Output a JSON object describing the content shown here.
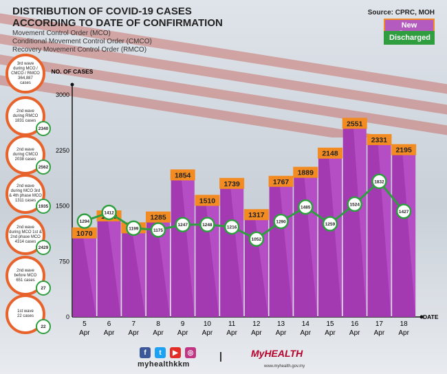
{
  "header": {
    "title_line1": "DISTRIBUTION OF COVID-19 CASES",
    "title_line2": "ACCORDING TO DATE OF CONFIRMATION",
    "sub1": "Movement Control Order (MCO)",
    "sub2": "Conditional Movement Control Order (CMCO)",
    "sub3": "Recovery Movement Control Order (RMCO)",
    "source": "Source: CPRC, MOH"
  },
  "legend": {
    "new_cases": "New Cases",
    "discharged": "Discharged"
  },
  "colors": {
    "bar": "#a43ab2",
    "bar_label": "#f28b22",
    "line": "#2e9e3f",
    "wave_border": "#e8632b"
  },
  "waves": [
    {
      "text": "3rd wave\nduring MCO /\nCMCO / RMCO\n364,887\ncases",
      "discharged": ""
    },
    {
      "text": "2nd wave\nduring RMCO\n1831 cases",
      "discharged": "2340"
    },
    {
      "text": "2nd wave\nduring CMCO\n2038 cases",
      "discharged": "2562"
    },
    {
      "text": "2nd wave\nduring MCO 3rd\n& 4th phase MCO\n1311 cases",
      "discharged": "1935"
    },
    {
      "text": "2nd wave\nduring MCO 1st &\n2nd phase MCO\n4314 cases",
      "discharged": "2429"
    },
    {
      "text": "2nd wave\nbefore MCO\n651 cases",
      "discharged": "27"
    },
    {
      "text": "1st wave\n22 cases",
      "discharged": "22"
    }
  ],
  "chart_data": {
    "type": "bar",
    "ylabel": "NO. OF CASES",
    "xlabel": "DATE",
    "ylim": [
      0,
      3000
    ],
    "yticks": [
      0,
      750,
      1500,
      2250,
      3000
    ],
    "categories": [
      "5",
      "6",
      "7",
      "8",
      "9",
      "10",
      "11",
      "12",
      "13",
      "14",
      "15",
      "16",
      "17",
      "18"
    ],
    "month": "Apr",
    "series": [
      {
        "name": "New Cases",
        "type": "bar",
        "values": [
          1070,
          1300,
          1139,
          1285,
          1854,
          1510,
          1739,
          1317,
          1767,
          1889,
          2148,
          2551,
          2331,
          2195
        ]
      },
      {
        "name": "Discharged",
        "type": "line",
        "values": [
          1294,
          1412,
          1199,
          1175,
          1247,
          1248,
          1216,
          1052,
          1290,
          1485,
          1259,
          1524,
          1832,
          1427
        ]
      }
    ]
  },
  "footer": {
    "handle": "myhealthkkm",
    "logo": "MyHEALTH",
    "logo_url": "www.myhealth.gov.my"
  }
}
